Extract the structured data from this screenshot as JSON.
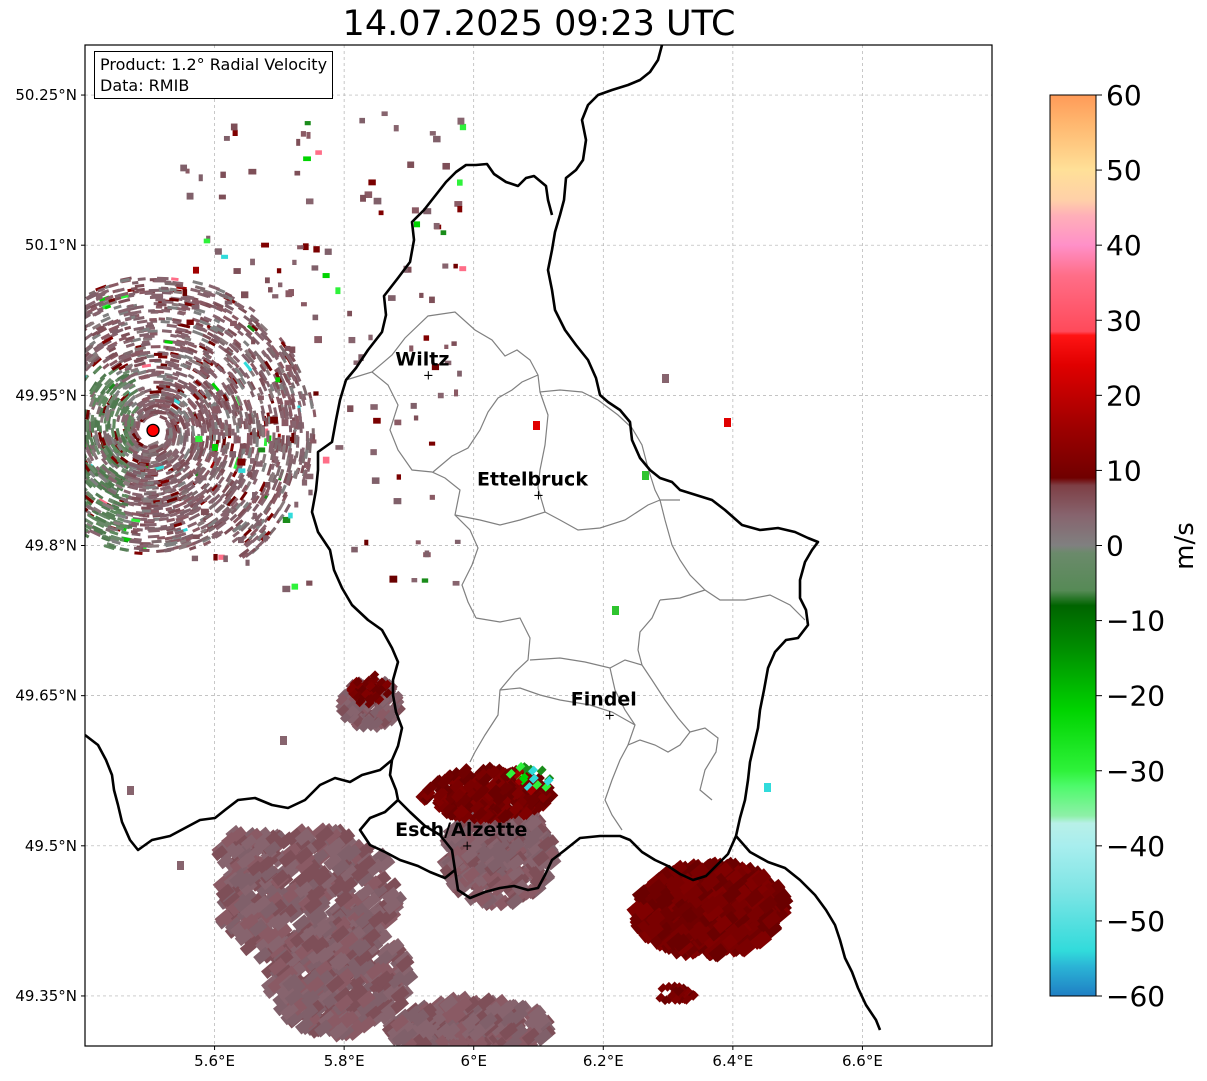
{
  "title": "14.07.2025 09:23 UTC",
  "info_box": {
    "product_line": "Product: 1.2° Radial Velocity",
    "data_line": "Data: RMIB"
  },
  "map": {
    "lon_range": [
      5.4,
      6.8
    ],
    "lat_range": [
      49.3,
      50.3
    ],
    "lon_ticks": [
      {
        "value": 5.6,
        "label": "5.6°E"
      },
      {
        "value": 5.8,
        "label": "5.8°E"
      },
      {
        "value": 6.0,
        "label": "6°E"
      },
      {
        "value": 6.2,
        "label": "6.2°E"
      },
      {
        "value": 6.4,
        "label": "6.4°E"
      },
      {
        "value": 6.6,
        "label": "6.6°E"
      }
    ],
    "lat_ticks": [
      {
        "value": 50.25,
        "label": "50.25°N"
      },
      {
        "value": 50.1,
        "label": "50.1°N"
      },
      {
        "value": 49.95,
        "label": "49.95°N"
      },
      {
        "value": 49.8,
        "label": "49.8°N"
      },
      {
        "value": 49.65,
        "label": "49.65°N"
      },
      {
        "value": 49.5,
        "label": "49.5°N"
      },
      {
        "value": 49.35,
        "label": "49.35°N"
      }
    ],
    "grid": true,
    "cities": [
      {
        "name": "Wiltz",
        "lon": 5.93,
        "lat": 49.97
      },
      {
        "name": "Ettelbruck",
        "lon": 6.1,
        "lat": 49.85
      },
      {
        "name": "Findel",
        "lon": 6.21,
        "lat": 49.63
      },
      {
        "name": "Esch/Alzette",
        "lon": 5.99,
        "lat": 49.5
      }
    ],
    "radar_site": {
      "lon": 5.505,
      "lat": 49.915,
      "color": "#ff0000"
    },
    "colors": {
      "border": "#000000",
      "cantons": "#808080",
      "grid": "#b0b0b0"
    }
  },
  "colorbar": {
    "label": "m/s",
    "min": -60,
    "max": 60,
    "ticks": [
      {
        "value": 60,
        "label": "60"
      },
      {
        "value": 50,
        "label": "50"
      },
      {
        "value": 40,
        "label": "40"
      },
      {
        "value": 30,
        "label": "30"
      },
      {
        "value": 20,
        "label": "20"
      },
      {
        "value": 10,
        "label": "10"
      },
      {
        "value": 0,
        "label": "0"
      },
      {
        "value": -10,
        "label": "−10"
      },
      {
        "value": -20,
        "label": "−20"
      },
      {
        "value": -30,
        "label": "−30"
      },
      {
        "value": -40,
        "label": "−40"
      },
      {
        "value": -50,
        "label": "−50"
      },
      {
        "value": -60,
        "label": "−60"
      }
    ],
    "stops": [
      {
        "v": -60,
        "color": "#1f7fc4"
      },
      {
        "v": -56,
        "color": "#2bb5d6"
      },
      {
        "v": -54,
        "color": "#31dbdb"
      },
      {
        "v": -46,
        "color": "#7ee5e5"
      },
      {
        "v": -40,
        "color": "#a8eeee"
      },
      {
        "v": -37,
        "color": "#b8f0e8"
      },
      {
        "v": -36,
        "color": "#8ef0a8"
      },
      {
        "v": -32,
        "color": "#4dfa6a"
      },
      {
        "v": -30,
        "color": "#2ef23a"
      },
      {
        "v": -22,
        "color": "#00d400"
      },
      {
        "v": -14,
        "color": "#009000"
      },
      {
        "v": -8,
        "color": "#006400"
      },
      {
        "v": -6,
        "color": "#568a56"
      },
      {
        "v": -1,
        "color": "#6b8a6b"
      },
      {
        "v": 0,
        "color": "#808080"
      },
      {
        "v": 4,
        "color": "#87646e"
      },
      {
        "v": 8,
        "color": "#7e3f45"
      },
      {
        "v": 9,
        "color": "#700000"
      },
      {
        "v": 16,
        "color": "#a00000"
      },
      {
        "v": 24,
        "color": "#e00000"
      },
      {
        "v": 28,
        "color": "#ff1414"
      },
      {
        "v": 28.5,
        "color": "#ff4a5a"
      },
      {
        "v": 36,
        "color": "#ff6e88"
      },
      {
        "v": 40,
        "color": "#ff90c8"
      },
      {
        "v": 44,
        "color": "#ffb0b8"
      },
      {
        "v": 46,
        "color": "#ffd0a8"
      },
      {
        "v": 50,
        "color": "#ffe098"
      },
      {
        "v": 56,
        "color": "#ffb870"
      },
      {
        "v": 60,
        "color": "#ff9a58"
      }
    ]
  }
}
